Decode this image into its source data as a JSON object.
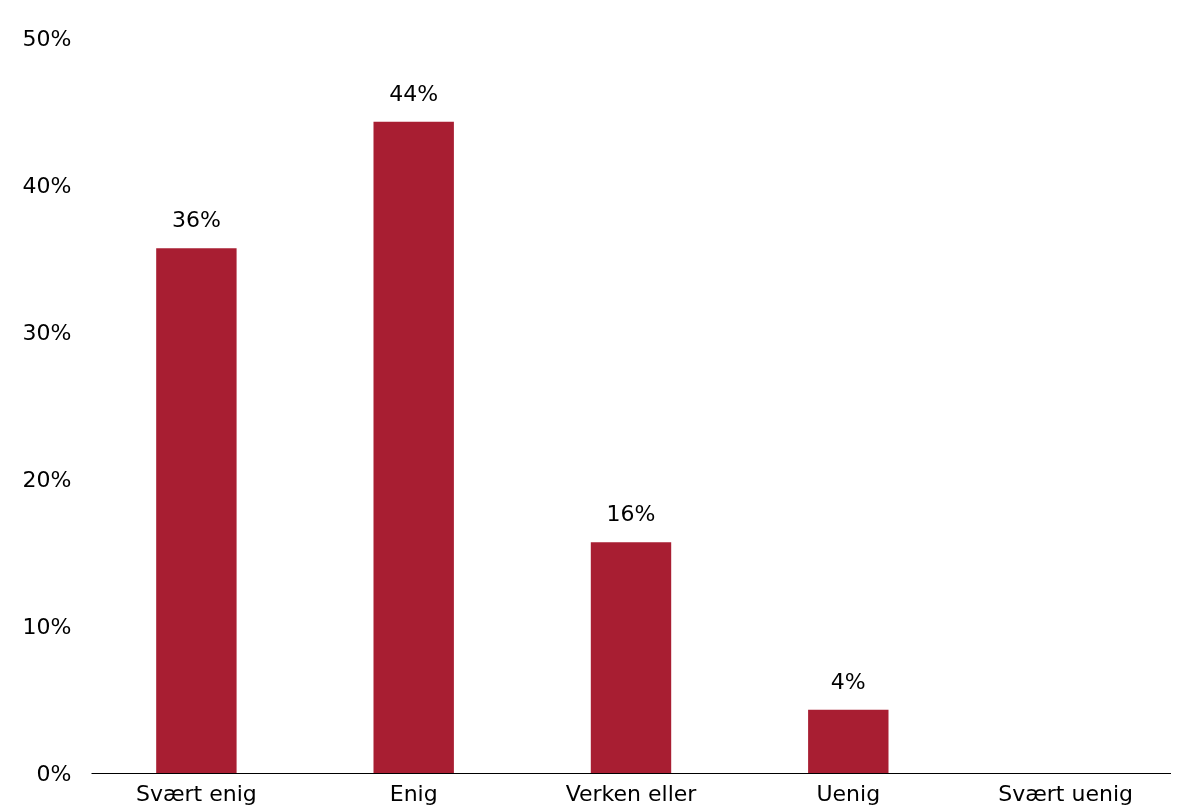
{
  "chart_data": {
    "type": "bar",
    "categories": [
      "Svært enig",
      "Enig",
      "Verken eller",
      "Uenig",
      "Svært uenig"
    ],
    "values": [
      35.7,
      44.3,
      15.7,
      4.3,
      0
    ],
    "value_labels": [
      "36%",
      "44%",
      "16%",
      "4%",
      null
    ],
    "color": "#a81e32",
    "ylim": [
      0,
      50
    ],
    "yticks": [
      {
        "value": 0,
        "label": "0%"
      },
      {
        "value": 10,
        "label": "10%"
      },
      {
        "value": 20,
        "label": "20%"
      },
      {
        "value": 30,
        "label": "30%"
      },
      {
        "value": 40,
        "label": "40%"
      },
      {
        "value": 50,
        "label": "50%"
      }
    ],
    "grid": false
  }
}
